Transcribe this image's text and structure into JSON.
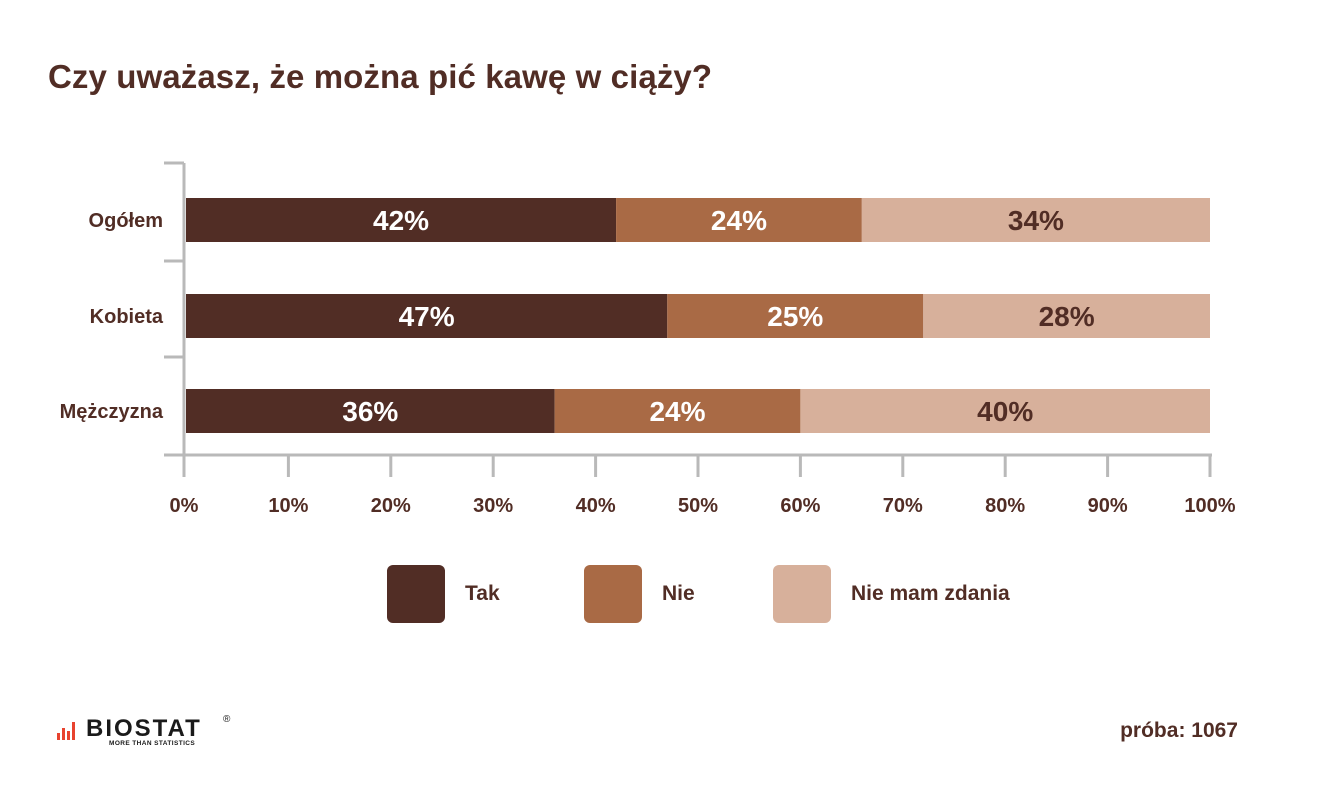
{
  "chart_data": {
    "type": "bar",
    "orientation": "horizontal",
    "stacked": true,
    "title": "Czy uważasz, że można pić kawę w ciąży?",
    "categories": [
      "Ogółem",
      "Kobieta",
      "Mężczyzna"
    ],
    "series": [
      {
        "name": "Tak",
        "color": "#512d25",
        "label_color": "#ffffff",
        "values": [
          42,
          47,
          36
        ],
        "labels": [
          "42%",
          "47%",
          "36%"
        ]
      },
      {
        "name": "Nie",
        "color": "#a96a45",
        "label_color": "#ffffff",
        "values": [
          24,
          25,
          24
        ],
        "labels": [
          "24%",
          "25%",
          "24%"
        ]
      },
      {
        "name": "Nie mam zdania",
        "color": "#d7b09b",
        "label_color": "#512d25",
        "values": [
          34,
          28,
          40
        ],
        "labels": [
          "34%",
          "28%",
          "40%"
        ]
      }
    ],
    "xlim": [
      0,
      100
    ],
    "x_ticks": [
      0,
      10,
      20,
      30,
      40,
      50,
      60,
      70,
      80,
      90,
      100
    ],
    "x_tick_labels": [
      "0%",
      "10%",
      "20%",
      "30%",
      "40%",
      "50%",
      "60%",
      "70%",
      "80%",
      "90%",
      "100%"
    ],
    "xlabel": "",
    "ylabel": "",
    "grid": false,
    "legend_position": "bottom",
    "axis_color": "#b9b9b9"
  },
  "brand": {
    "name": "BIOSTAT",
    "tagline": "MORE THAN STATISTICS",
    "registered_mark": "®",
    "accent_color": "#e8432f"
  },
  "sample": {
    "label": "próba: 1067"
  }
}
